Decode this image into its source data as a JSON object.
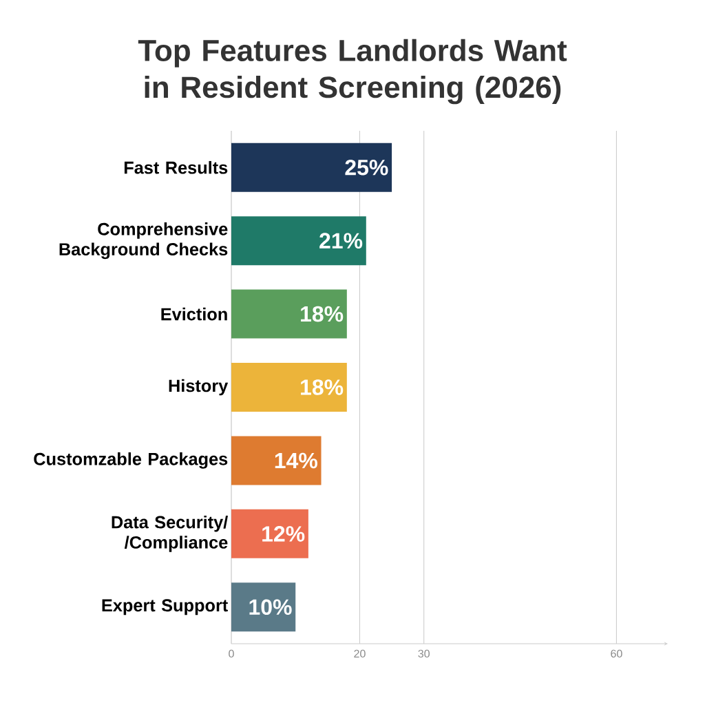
{
  "chart_data": {
    "type": "bar",
    "orientation": "horizontal",
    "title": "Top Features Landlords Want in Resident Screening (2026)",
    "categories": [
      "Fast Results",
      "Comprehensive Background Checks",
      "Eviction",
      "History",
      "Customzable Packages",
      "Data Security/ /Compliance",
      "Expert Support"
    ],
    "values": [
      25,
      21,
      18,
      18,
      14,
      12,
      10
    ],
    "colors": [
      "#1d3659",
      "#1f7a68",
      "#5a9e5c",
      "#ecb43a",
      "#de7b30",
      "#ec6e50",
      "#5a7a88"
    ],
    "value_labels": [
      "25%",
      "21%",
      "18%",
      "18%",
      "14%",
      "12%",
      "10%"
    ],
    "xlim": [
      0,
      68
    ],
    "xticks": [
      0,
      20,
      30,
      60
    ],
    "grid": "x"
  }
}
